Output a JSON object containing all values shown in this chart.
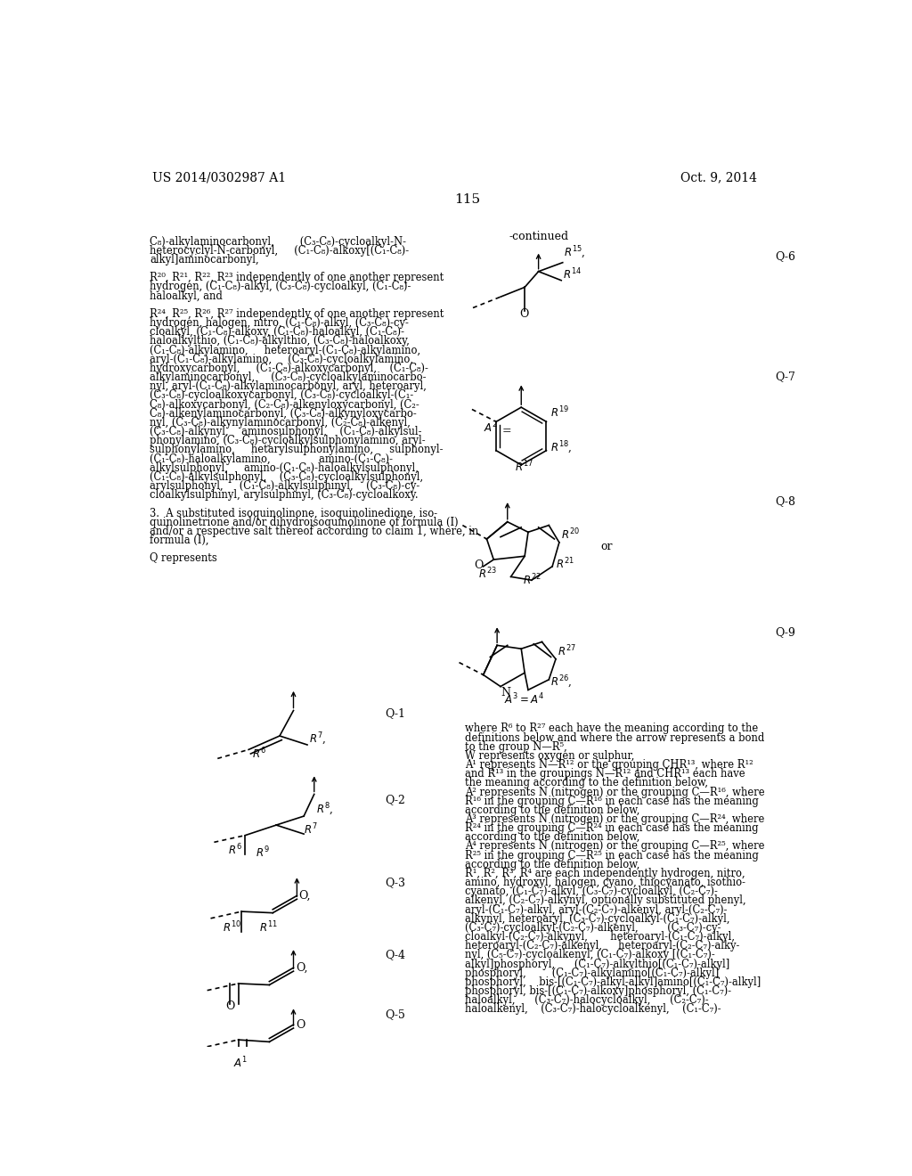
{
  "page_number": "115",
  "patent_number": "US 2014/0302987 A1",
  "date": "Oct. 9, 2014",
  "background_color": "#ffffff",
  "text_color": "#000000",
  "font_size_body": 8.5,
  "font_size_header": 10,
  "left_column_text": [
    "C₈)-alkylaminocarbonyl,        (C₃-C₈)-cycloalkyl-N-",
    "heterocyclyl-N-carbonyl,     (C₁-C₈)-alkoxy[(C₁-C₈)-",
    "alkyl]aminocarbonyl,",
    "",
    "R²⁰, R²¹, R²², R²³ independently of one another represent",
    "hydrogen, (C₁-C₈)-alkyl, (C₃-C₈)-cycloalkyl, (C₁-C₈)-",
    "haloalkyl, and",
    "",
    "R²⁴, R²⁵, R²⁶, R²⁷ independently of one another represent",
    "hydrogen, halogen, nitro, (C₁-C₈)-alkyl, (C₃-C₈)-cy-",
    "cloalkyl, (C₁-C₈)-alkoxy, (C₁-C₈)-haloalkyl, (C₁-C₈)-",
    "haloalkylthio, (C₁-C₈)-alkylthio, (C₃-C₈)-haloalkoxy,",
    "(C₁-C₈)-alkylamino,     heteroaryl-(C₁-C₈)-alkylamino,",
    "aryl-(C₁-C₈)-alkylamino,     (C₃-C₈)-cycloalkylamino,",
    "hydroxycarbonyl,     (C₁-C₈)-alkoxycarbonyl,    (C₁-C₈)-",
    "alkylaminocarbonyl,     (C₃-C₈)-cycloalkylaminocarbo-",
    "nyl, aryl-(C₁-C₈)-alkylaminocarbonyl, aryl, heteroaryl,",
    "(C₃-C₈)-cycloalkoxycarbonyl, (C₃-C₈)-cycloalkyl-(C₁-",
    "C₈)-alkoxycarbonyl, (C₂-C₈)-alkenyloxycarbonyl, (C₂-",
    "C₈)-alkenylaminocarbonyl, (C₃-C₈)-alkynyloxycarbo-",
    "nyl, (C₃-C₈)-alkynylaminocarbonyl, (C₂-C₈)-alkenyl,",
    "(C₃-C₈)-alkynyl,    aminosulphonyl,    (C₁-C₈)-alkylsul-",
    "phonylamino, (C₃-C₈)-cycloalkylsulphonylamino, aryl-",
    "sulphonylamino,     hetarylsulphonylamino,     sulphonyl-",
    "(C₁-C₈)-haloalkylamino,               amino-(C₁-C₈)-",
    "alkylsulphonyl,     amino-(C₁-C₈)-haloalkylsulphonyl,",
    "(C₁-C₈)-alkylsulphonyl,    (C₃-C₈)-cycloalkylsulphonyl,",
    "arylsulphonyl,     (C₁-C₈)-alkylsulphinyl,    (C₃-C₈)-cy-",
    "cloalkylsulphinyl, arylsulphinyl, (C₃-C₈)-cycloalkoxy.",
    "",
    "3.  A substituted isoquinolinone, isoquinolinedione, iso-",
    "quinolinetrione and/or dihydroisoquinolinone of formula (I)",
    "and/or a respective salt thereof according to claim 1, where, in",
    "formula (I),",
    "",
    "Q represents"
  ],
  "right_column_text": [
    "where R⁶ to R²⁷ each have the meaning according to the",
    "definitions below and where the arrow represents a bond",
    "to the group N—R⁵,",
    "W represents oxygen or sulphur,",
    "A¹ represents N—R¹² or the grouping CHR¹³, where R¹²",
    "and R¹³ in the groupings N—R¹² and CHR¹³ each have",
    "the meaning according to the definition below,",
    "A² represents N (nitrogen) or the grouping C—R¹⁶, where",
    "R¹⁶ in the grouping C—R¹⁶ in each case has the meaning",
    "according to the definition below,",
    "A³ represents N (nitrogen) or the grouping C—R²⁴, where",
    "R²⁴ in the grouping C—R²⁴ in each case has the meaning",
    "according to the definition below,",
    "A⁴ represents N (nitrogen) or the grouping C—R²⁵, where",
    "R²⁵ in the grouping C—R²⁵ in each case has the meaning",
    "according to the definition below,",
    "R¹, R², R³, R⁴ are each independently hydrogen, nitro,",
    "amino, hydroxyl, halogen, cyano, thiocyanato, isothio-",
    "cyanato, (C₁-C₇)-alkyl, (C₃-C₇)-cycloalkyl, (C₂-C₇)-",
    "alkenyl, (C₂-C₇)-alkynyl, optionally substituted phenyl,",
    "aryl-(C₁-C₇)-alkyl, aryl-(C₂-C₇)-alkenyl, aryl-(C₂-C₇)-",
    "alkynyl, heteroaryl, (C₃-C₇)-cycloalkyl-(C₁-C₇)-alkyl,",
    "(C₃-C₇)-cycloalkyl-(C₂-C₇)-alkenyl,         (C₃-C₇)-cy-",
    "cloalkyl-(C₂-C₇)-alkynyl,       heteroaryl-(C₁-C₇)-alkyl,",
    "heteroaryl-(C₂-C₇)-alkenyl,     heteroaryl-(C₂-C₇)-alky-",
    "nyl, (C₅-C₇)-cycloalkenyl, (C₁-C₇)-alkoxy [(C₁-C₇)-",
    "alkyl]phosphoryl,      (C₁-C₇)-alkylthio[(C₁-C₇)-alkyl]",
    "phosphoryl,        (C₁-C₇)-alkylamino[(C₁-C₇)-alkyl]",
    "phosphoryl,    bis-[(C₁-C₇)-alkyl-alkyl]amino[(C₁-C₇)-alkyl]",
    "phosphoryl, bis-[(C₁-C₇)-alkoxy]phosphoryl, (C₁-C₇)-",
    "haloalkyl,      (C₃-C₇)-halocycloalkyl,      (C₂-C₇)-",
    "haloalkenyl,    (C₃-C₇)-halocycloalkenyl,    (C₁-C₇)-"
  ]
}
